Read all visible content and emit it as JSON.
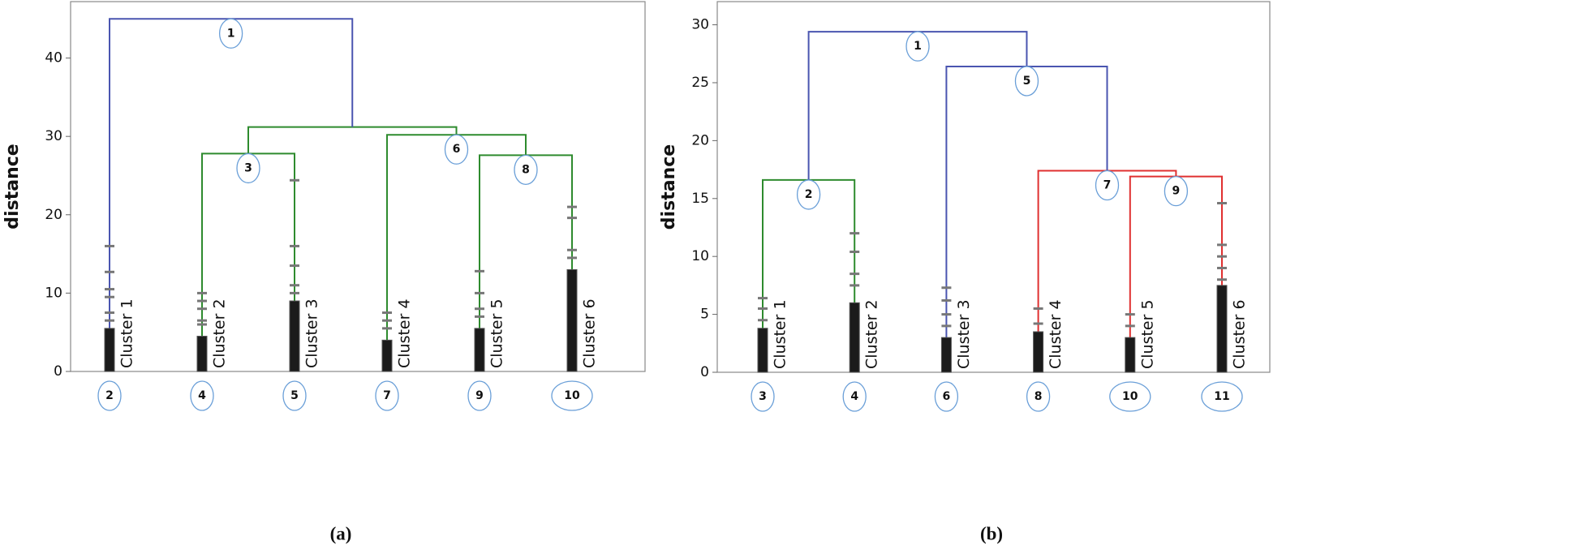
{
  "chart_data": [
    {
      "type": "dendrogram",
      "caption": "(a)",
      "y_label": "distance",
      "ylim": [
        0,
        47.2
      ],
      "yticks": [
        0,
        10,
        20,
        30,
        40
      ],
      "tree": {
        "node": "1",
        "height": 45,
        "color": "#4a55b0",
        "children": [
          {
            "node": "2",
            "name": "Cluster 1",
            "core": 5.5,
            "outliers": [
              16,
              12.7,
              10.5,
              9.5,
              7.5,
              6.5
            ]
          },
          {
            "node": null,
            "height": 31.2,
            "color": "#2e8b2e",
            "children": [
              {
                "node": "3",
                "height": 27.8,
                "color": "#2e8b2e",
                "children": [
                  {
                    "node": "4",
                    "name": "Cluster 2",
                    "core": 4.5,
                    "outliers": [
                      10,
                      9,
                      8,
                      6.5,
                      6
                    ]
                  },
                  {
                    "node": "5",
                    "name": "Cluster 3",
                    "core": 9,
                    "outliers": [
                      24.4,
                      16,
                      13.5,
                      11,
                      10
                    ]
                  }
                ]
              },
              {
                "node": "6",
                "height": 30.2,
                "color": "#2e8b2e",
                "children": [
                  {
                    "node": "7",
                    "name": "Cluster 4",
                    "core": 4,
                    "outliers": [
                      7.5,
                      6.5,
                      5.5
                    ]
                  },
                  {
                    "node": "8",
                    "height": 27.6,
                    "color": "#2e8b2e",
                    "children": [
                      {
                        "node": "9",
                        "name": "Cluster 5",
                        "core": 5.5,
                        "outliers": [
                          12.8,
                          10,
                          8,
                          7
                        ]
                      },
                      {
                        "node": "10",
                        "name": "Cluster 6",
                        "core": 13,
                        "outliers": [
                          21,
                          19.6,
                          15.5,
                          14.5
                        ]
                      }
                    ]
                  }
                ]
              }
            ]
          }
        ]
      }
    },
    {
      "type": "dendrogram",
      "caption": "(b)",
      "y_label": "distance",
      "ylim": [
        0,
        32
      ],
      "yticks": [
        0,
        5,
        10,
        15,
        20,
        25,
        30
      ],
      "tree": {
        "node": "1",
        "height": 29.4,
        "color": "#4a55b0",
        "children": [
          {
            "node": "2",
            "height": 16.6,
            "color": "#2e8b2e",
            "children": [
              {
                "node": "3",
                "name": "Cluster 1",
                "core": 3.8,
                "outliers": [
                  6.4,
                  5.5,
                  4.5
                ]
              },
              {
                "node": "4",
                "name": "Cluster 2",
                "core": 6,
                "outliers": [
                  12,
                  10.4,
                  8.5,
                  7.5
                ]
              }
            ]
          },
          {
            "node": "5",
            "height": 26.4,
            "color": "#4a55b0",
            "children": [
              {
                "node": "6",
                "name": "Cluster 3",
                "core": 3,
                "outliers": [
                  7.3,
                  6.2,
                  5,
                  4
                ]
              },
              {
                "node": "7",
                "height": 17.4,
                "color": "#e03030",
                "children": [
                  {
                    "node": "8",
                    "name": "Cluster 4",
                    "core": 3.5,
                    "outliers": [
                      5.5,
                      4.2
                    ]
                  },
                  {
                    "node": "9",
                    "height": 16.9,
                    "color": "#e03030",
                    "children": [
                      {
                        "node": "10",
                        "name": "Cluster 5",
                        "core": 3,
                        "outliers": [
                          5,
                          4
                        ]
                      },
                      {
                        "node": "11",
                        "name": "Cluster 6",
                        "core": 7.5,
                        "outliers": [
                          14.6,
                          11,
                          10,
                          9,
                          8
                        ]
                      }
                    ]
                  }
                ]
              }
            ]
          }
        ]
      }
    }
  ]
}
